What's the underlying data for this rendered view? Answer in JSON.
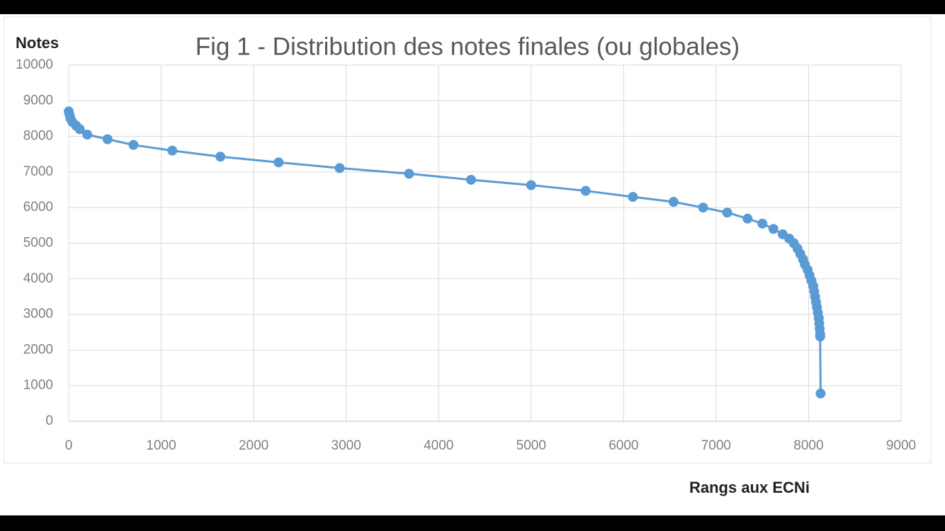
{
  "chart_data": {
    "type": "scatter",
    "title": "Fig 1 - Distribution des notes finales (ou globales)",
    "y_label": "Notes",
    "x_label": "Rangs aux ECNi",
    "x": [
      0,
      10,
      20,
      40,
      80,
      120,
      200,
      420,
      700,
      1120,
      1640,
      2270,
      2930,
      3680,
      4350,
      5000,
      5590,
      6100,
      6540,
      6860,
      7120,
      7340,
      7500,
      7620,
      7720,
      7790,
      7840,
      7880,
      7910,
      7940,
      7960,
      7990,
      8010,
      8030,
      8050,
      8060,
      8070,
      8080,
      8090,
      8100,
      8110,
      8115,
      8120,
      8125,
      8125,
      8130
    ],
    "values": [
      8700,
      8600,
      8500,
      8400,
      8300,
      8200,
      8050,
      7920,
      7760,
      7600,
      7430,
      7270,
      7110,
      6950,
      6780,
      6630,
      6470,
      6300,
      6160,
      6000,
      5860,
      5690,
      5550,
      5400,
      5250,
      5130,
      5000,
      4850,
      4700,
      4550,
      4400,
      4250,
      4100,
      3950,
      3800,
      3650,
      3500,
      3350,
      3200,
      3050,
      2900,
      2750,
      2600,
      2450,
      2380,
      780
    ],
    "color": "#5b9bd5",
    "line": true,
    "xlim": [
      0,
      9000
    ],
    "xticks": [
      0,
      1000,
      2000,
      3000,
      4000,
      5000,
      6000,
      7000,
      8000,
      9000
    ],
    "ylim": [
      0,
      10000
    ],
    "yticks": [
      0,
      1000,
      2000,
      3000,
      4000,
      5000,
      6000,
      7000,
      8000,
      9000,
      10000
    ],
    "grid": true
  }
}
